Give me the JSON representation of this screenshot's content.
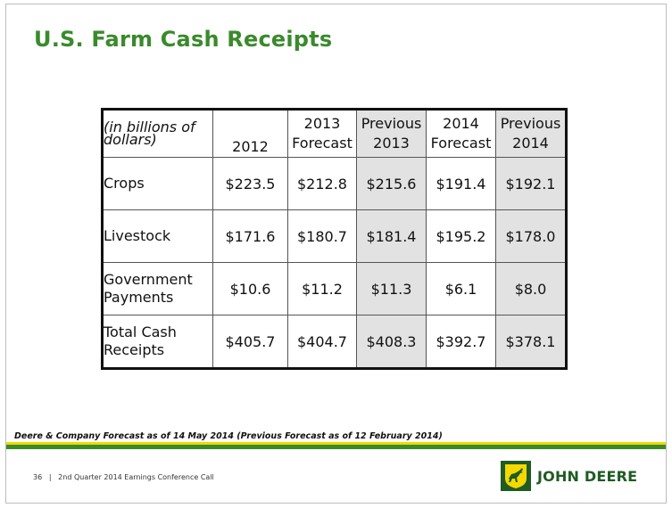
{
  "title": "U.S. Farm Cash Receipts",
  "table": {
    "header": {
      "units": "(in billions of dollars)",
      "col_2012": "2012",
      "col_2013_forecast": {
        "line1": "2013",
        "line2": "Forecast"
      },
      "col_previous_2013": {
        "line1": "Previous",
        "line2": "2013"
      },
      "col_2014_forecast": {
        "line1": "2014",
        "line2": "Forecast"
      },
      "col_previous_2014": {
        "line1": "Previous",
        "line2": "2014"
      }
    },
    "rows": [
      {
        "label_line1": "Crops",
        "label_line2": "",
        "v2012": "$223.5",
        "f2013": "$212.8",
        "p2013": "$215.6",
        "f2014": "$191.4",
        "p2014": "$192.1"
      },
      {
        "label_line1": "Livestock",
        "label_line2": "",
        "v2012": "$171.6",
        "f2013": "$180.7",
        "p2013": "$181.4",
        "f2014": "$195.2",
        "p2014": "$178.0"
      },
      {
        "label_line1": "Government",
        "label_line2": "Payments",
        "v2012": "$10.6",
        "f2013": "$11.2",
        "p2013": "$11.3",
        "f2014": "$6.1",
        "p2014": "$8.0"
      },
      {
        "label_line1": "Total Cash",
        "label_line2": "Receipts",
        "v2012": "$405.7",
        "f2013": "$404.7",
        "p2013": "$408.3",
        "f2014": "$392.7",
        "p2014": "$378.1"
      }
    ]
  },
  "footnote": "Deere & Company Forecast as of 14 May 2014 (Previous Forecast as of 12 February 2014)",
  "footer": {
    "page_number": "36",
    "separator": "|",
    "caption": "2nd Quarter 2014 Earnings Conference Call"
  },
  "logo": {
    "text": "JOHN DEERE",
    "icon": "leaping-deer-icon"
  },
  "colors": {
    "title_green": "#3a8a2c",
    "band_yellow": "#f5d800",
    "band_green": "#3a8a2c",
    "shaded_cell": "#e2e2e2",
    "logo_green": "#1f5b22"
  }
}
